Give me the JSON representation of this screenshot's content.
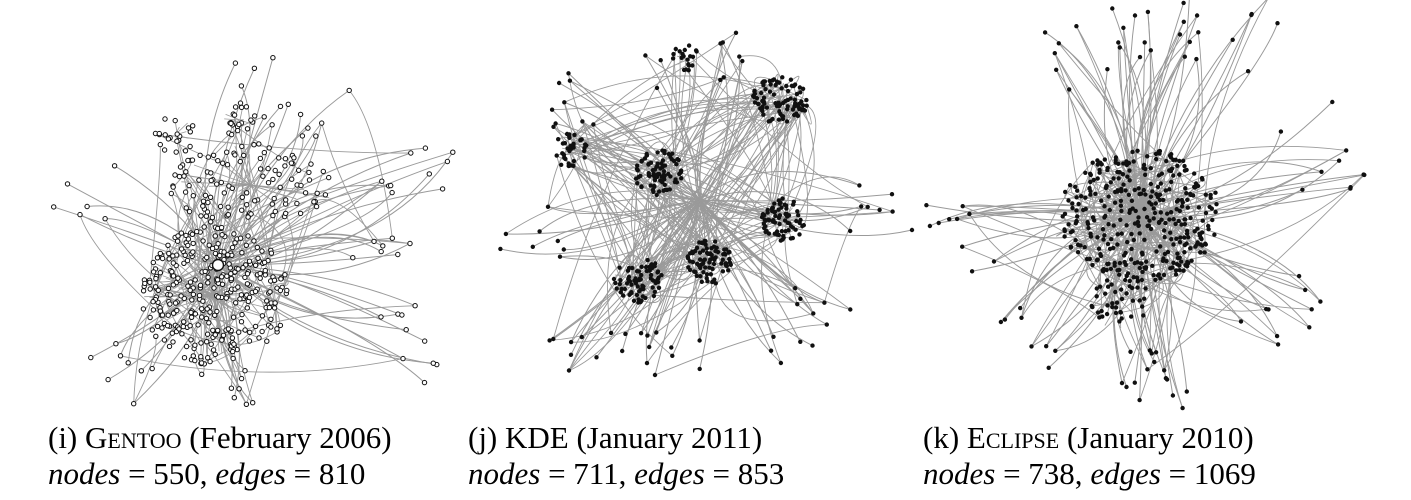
{
  "figure": {
    "panels": [
      {
        "label": "(i)",
        "project": "Gentoo",
        "date": "(February 2006)",
        "nodes_text": "nodes",
        "nodes_eq": " = 550, ",
        "edges_text": "edges",
        "edges_eq": " = 810",
        "nodes": 550,
        "edges": 810
      },
      {
        "label": "(j)",
        "project": "KDE",
        "date": "(January 2011)",
        "nodes_text": "nodes",
        "nodes_eq": " = 711, ",
        "edges_text": "edges",
        "edges_eq": " = 853",
        "nodes": 711,
        "edges": 853
      },
      {
        "label": "(k)",
        "project": "Eclipse",
        "date": "(January 2010)",
        "nodes_text": "nodes",
        "nodes_eq": " = 738, ",
        "edges_text": "edges",
        "edges_eq": " = 1069",
        "nodes": 738,
        "edges": 1069
      }
    ],
    "colors": {
      "edge": "#9a9a9a",
      "node_fill": "#ffffff",
      "node_stroke": "#111111",
      "node_dark": "#111111"
    }
  }
}
